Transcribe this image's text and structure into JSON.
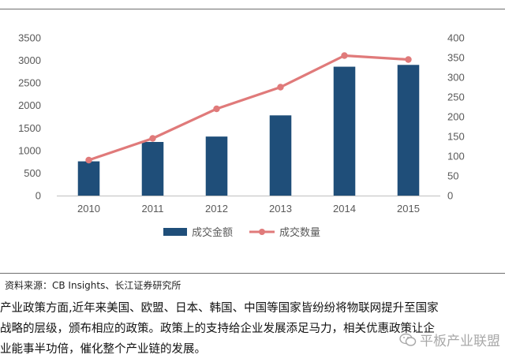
{
  "chart_data": {
    "type": "bar+line",
    "categories": [
      "2010",
      "2011",
      "2012",
      "2013",
      "2014",
      "2015"
    ],
    "series": [
      {
        "name": "成交金额",
        "type": "bar",
        "axis": "left",
        "color": "#1f4e79",
        "values": [
          760,
          1190,
          1310,
          1780,
          2860,
          2900
        ]
      },
      {
        "name": "成交数量",
        "type": "line",
        "axis": "right",
        "color": "#e07a7a",
        "values": [
          90,
          145,
          220,
          275,
          355,
          345
        ]
      }
    ],
    "y_left": {
      "ylim": [
        0,
        3500
      ],
      "ticks": [
        "0",
        "500",
        "1000",
        "1500",
        "2000",
        "2500",
        "3000",
        "3500"
      ]
    },
    "y_right": {
      "ylim": [
        0,
        400
      ],
      "ticks": [
        "0",
        "50",
        "100",
        "150",
        "200",
        "250",
        "300",
        "350",
        "400"
      ]
    },
    "legend_position": "bottom",
    "grid": false
  },
  "source": "资料来源：CB Insights、长江证券研究所",
  "paragraph": [
    "产业政策方面,近年来美国、欧盟、日本、韩国、中国等国家皆纷纷将物联网提升至国家",
    "战略的层级，颁布相应的政策。政策上的支持给企业发展添足马力，相关优惠政策让企",
    "业能事半功倍，催化整个产业链的发展。"
  ],
  "watermark": "平板产业联盟"
}
